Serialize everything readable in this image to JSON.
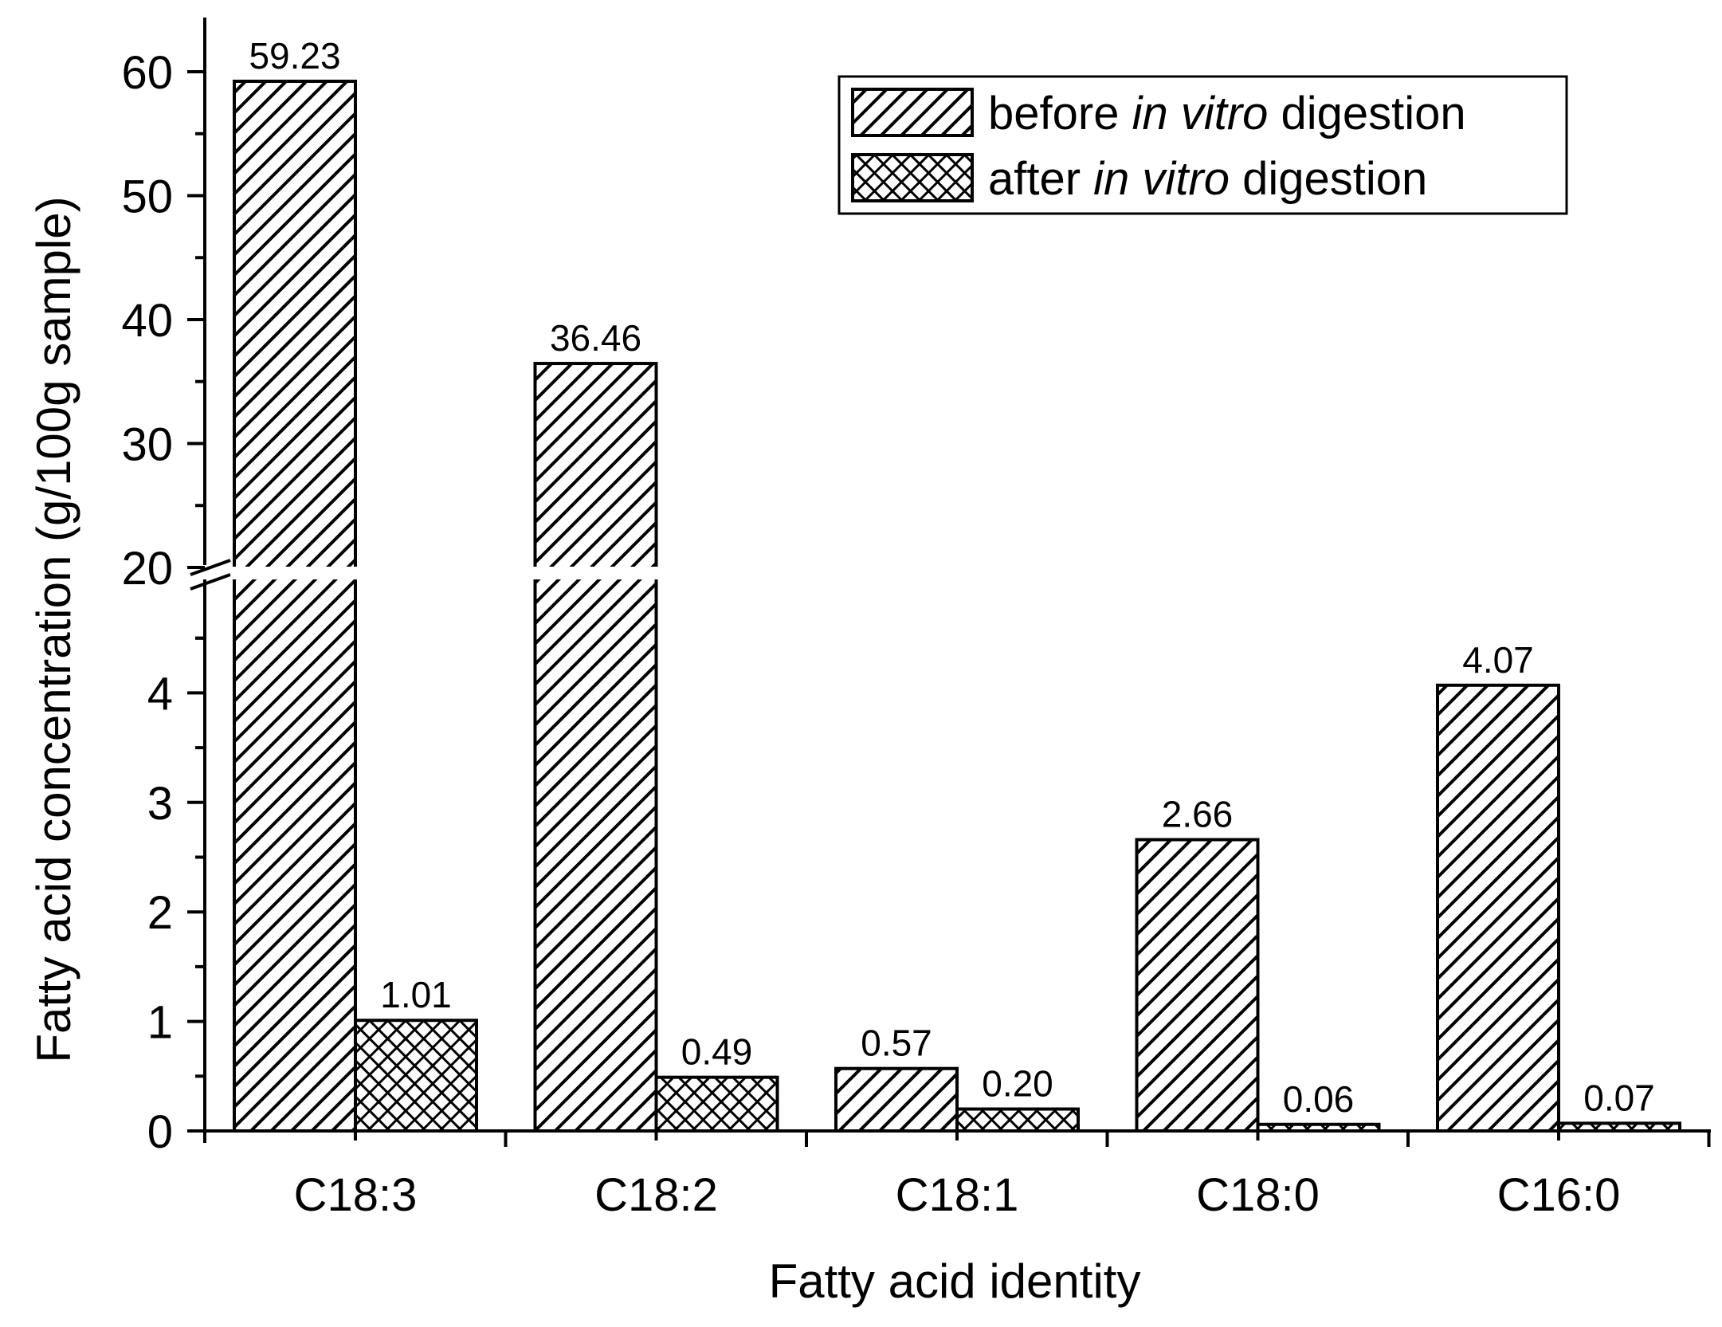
{
  "chart_data": {
    "type": "bar",
    "xlabel": "Fatty acid identity",
    "ylabel": "Fatty acid concentration (g/100g sample)",
    "categories": [
      "C18:3",
      "C18:2",
      "C18:1",
      "C18:0",
      "C16:0"
    ],
    "series": [
      {
        "name": "before in vitro digestion",
        "legend": [
          "before ",
          "in vitro",
          " digestion"
        ],
        "pattern": "diagonal-hatch",
        "values": [
          59.23,
          36.46,
          0.57,
          2.66,
          4.07
        ],
        "labels": [
          "59.23",
          "36.46",
          "0.57",
          "2.66",
          "4.07"
        ]
      },
      {
        "name": "after in vitro digestion",
        "legend": [
          "after ",
          "in vitro",
          " digestion"
        ],
        "pattern": "crosshatch",
        "values": [
          1.01,
          0.49,
          0.2,
          0.06,
          0.07
        ],
        "labels": [
          "1.01",
          "0.49",
          "0.20",
          "0.06",
          "0.07"
        ]
      }
    ],
    "y_axis": {
      "broken": true,
      "lower_range": [
        0,
        5
      ],
      "lower_ticks": [
        "0",
        "1",
        "2",
        "3",
        "4"
      ],
      "upper_range": [
        20,
        60
      ],
      "upper_ticks": [
        "20",
        "30",
        "40",
        "50",
        "60"
      ]
    },
    "legend_position": "top-right",
    "grid": false
  }
}
